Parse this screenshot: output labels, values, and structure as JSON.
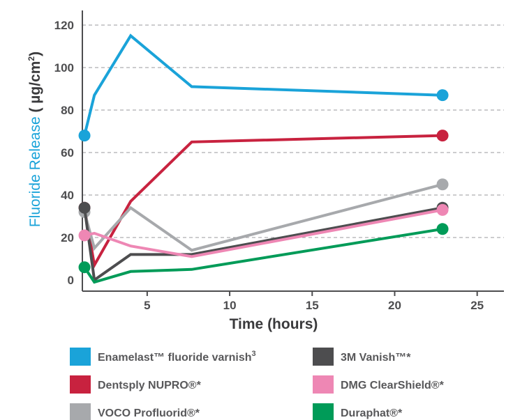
{
  "chart_data": {
    "type": "line",
    "xlabel": "Time (hours)",
    "ylabel": "Fluoride Release",
    "ylabel_unit_prefix": "( µg/cm",
    "ylabel_unit_sup": "2",
    "ylabel_unit_suffix": ")",
    "xlim": [
      0.5,
      25.5
    ],
    "ylim": [
      -4,
      128
    ],
    "x_ticks": [
      5,
      10,
      15,
      20,
      25
    ],
    "y_ticks": [
      0,
      20,
      40,
      60,
      80,
      100,
      120
    ],
    "grid": "horizontal-dashed",
    "legend_position": "bottom",
    "series": [
      {
        "name": "Enamelast™ fluoride varnish",
        "name_sup": "3",
        "color": "#1aa3d9",
        "x": [
          1.2,
          1.8,
          4,
          7.7,
          22.9
        ],
        "y": [
          68,
          87,
          115,
          91,
          87
        ]
      },
      {
        "name": "Dentsply NUPRO®*",
        "color": "#c8223f",
        "x": [
          1.2,
          1.8,
          4,
          7.7,
          22.9
        ],
        "y": [
          34,
          7,
          37,
          65,
          68
        ]
      },
      {
        "name": "VOCO Profluorid®*",
        "color": "#a7a9ac",
        "x": [
          1.2,
          1.8,
          4,
          7.7,
          22.9
        ],
        "y": [
          32,
          15,
          34,
          14,
          45
        ]
      },
      {
        "name": "3M Vanish™*",
        "color": "#4d4d4f",
        "x": [
          1.2,
          1.8,
          4,
          7.7,
          22.9
        ],
        "y": [
          34,
          0,
          12,
          12,
          34
        ]
      },
      {
        "name": "DMG ClearShield®*",
        "color": "#ee87b4",
        "x": [
          1.2,
          1.8,
          4,
          7.7,
          22.9
        ],
        "y": [
          21,
          22,
          16,
          11,
          33
        ]
      },
      {
        "name": "Duraphat®*",
        "color": "#009b58",
        "x": [
          1.2,
          1.8,
          4,
          7.7,
          22.9
        ],
        "y": [
          6,
          -1,
          4,
          5,
          24
        ]
      }
    ]
  }
}
